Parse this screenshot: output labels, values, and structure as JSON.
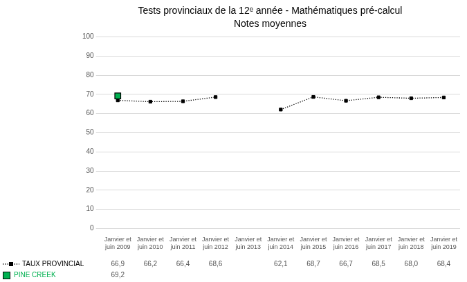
{
  "chart_data": {
    "type": "line",
    "title": "Tests provinciaux de la 12ᵉ année - Mathématiques pré-calcul",
    "subtitle": "Notes moyennes",
    "categories": [
      "Janvier et\njuin 2009",
      "Janvier et\njuin 2010",
      "Janvier et\njuin 2011",
      "Janvier et\njuin 2012",
      "Janvier et\njuin 2013",
      "Janvier et\njuin 2014",
      "Janvier et\njuin 2015",
      "Janvier et\njuin 2016",
      "Janvier et\njuin 2017",
      "Janvier et\njuin 2018",
      "Janvier et\njuin 2019"
    ],
    "series": [
      {
        "name": "TAUX PROVINCIAL",
        "color": "#000000",
        "marker": "square",
        "line_style": "dotted",
        "values": [
          66.9,
          66.2,
          66.4,
          68.6,
          null,
          62.1,
          68.7,
          66.7,
          68.5,
          68.0,
          68.4
        ],
        "value_labels": [
          "66,9",
          "66,2",
          "66,4",
          "68,6",
          null,
          "62,1",
          "68,7",
          "66,7",
          "68,5",
          "68,0",
          "68,4"
        ]
      },
      {
        "name": "PINE CREEK",
        "color": "#00b050",
        "marker": "square",
        "line_style": "none",
        "values": [
          69.2,
          null,
          null,
          null,
          null,
          null,
          null,
          null,
          null,
          null,
          null
        ],
        "value_labels": [
          "69,2",
          null,
          null,
          null,
          null,
          null,
          null,
          null,
          null,
          null,
          null
        ]
      }
    ],
    "ylim": [
      0,
      100
    ],
    "yticks": [
      0,
      10,
      20,
      30,
      40,
      50,
      60,
      70,
      80,
      90,
      100
    ],
    "grid": true,
    "legend": "bottom"
  }
}
